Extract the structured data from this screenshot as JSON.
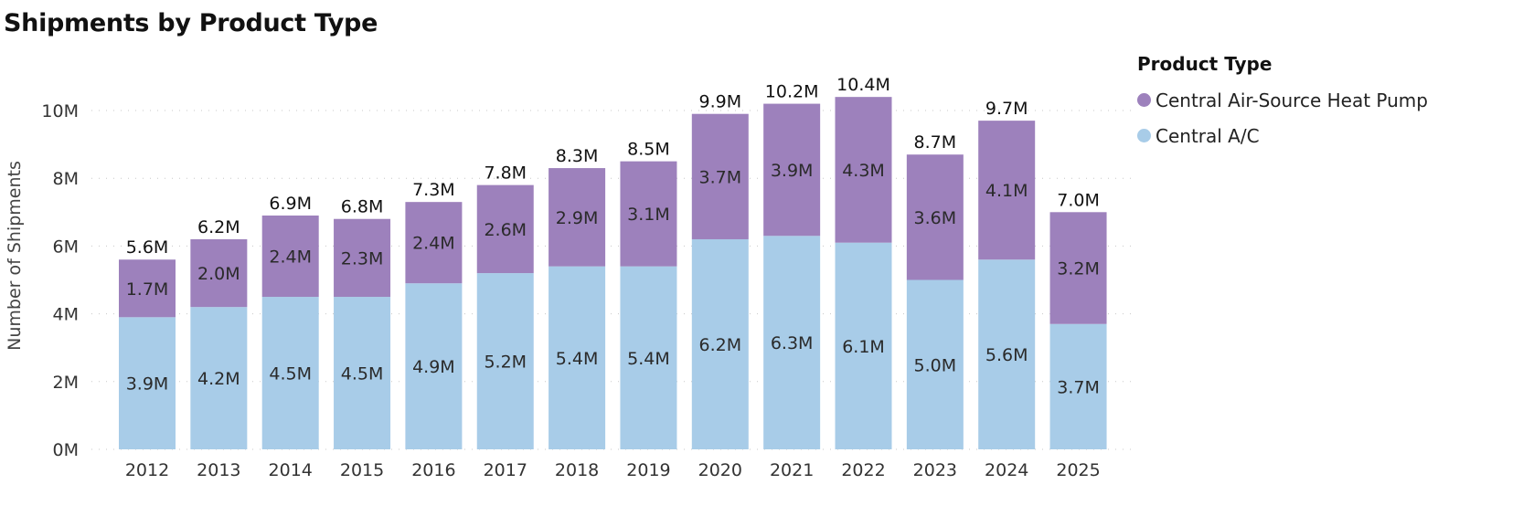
{
  "chart_data": {
    "type": "bar",
    "stacked": true,
    "title": "Shipments by Product Type",
    "xlabel": "",
    "ylabel": "Number of Shipments",
    "ylim": [
      0,
      10500000
    ],
    "yticks": [
      0,
      2000000,
      4000000,
      6000000,
      8000000,
      10000000
    ],
    "ytick_labels": [
      "0M",
      "2M",
      "4M",
      "6M",
      "8M",
      "10M"
    ],
    "grid": true,
    "legend": {
      "title": "Product Type",
      "placement": "right"
    },
    "categories": [
      "2012",
      "2013",
      "2014",
      "2015",
      "2016",
      "2017",
      "2018",
      "2019",
      "2020",
      "2021",
      "2022",
      "2023",
      "2024",
      "2025"
    ],
    "series": [
      {
        "name": "Central A/C",
        "color": "#a8cce8",
        "values": [
          3.9,
          4.2,
          4.5,
          4.5,
          4.9,
          5.2,
          5.4,
          5.4,
          6.2,
          6.3,
          6.1,
          5.0,
          5.6,
          3.7
        ],
        "labels": [
          "3.9M",
          "4.2M",
          "4.5M",
          "4.5M",
          "4.9M",
          "5.2M",
          "5.4M",
          "5.4M",
          "6.2M",
          "6.3M",
          "6.1M",
          "5.0M",
          "5.6M",
          "3.7M"
        ]
      },
      {
        "name": "Central Air-Source Heat Pump",
        "color": "#9d81bc",
        "values": [
          1.7,
          2.0,
          2.4,
          2.3,
          2.4,
          2.6,
          2.9,
          3.1,
          3.7,
          3.9,
          4.3,
          3.6,
          4.1,
          3.2
        ],
        "labels": [
          "1.7M",
          "2.0M",
          "2.4M",
          "2.3M",
          "2.4M",
          "2.6M",
          "2.9M",
          "3.1M",
          "3.7M",
          "3.9M",
          "4.3M",
          "3.6M",
          "4.1M",
          "3.2M"
        ]
      }
    ],
    "totals": [
      5.6,
      6.2,
      6.9,
      6.8,
      7.3,
      7.8,
      8.3,
      8.5,
      9.9,
      10.2,
      10.4,
      8.7,
      9.7,
      7.0
    ],
    "total_labels": [
      "5.6M",
      "6.2M",
      "6.9M",
      "6.8M",
      "7.3M",
      "7.8M",
      "8.3M",
      "8.5M",
      "9.9M",
      "10.2M",
      "10.4M",
      "8.7M",
      "9.7M",
      "7.0M"
    ],
    "value_unit": "millions"
  },
  "legend": {
    "title": "Product Type",
    "items": [
      {
        "label": "Central Air-Source Heat Pump",
        "color": "#9d81bc"
      },
      {
        "label": "Central A/C",
        "color": "#a8cce8"
      }
    ]
  }
}
